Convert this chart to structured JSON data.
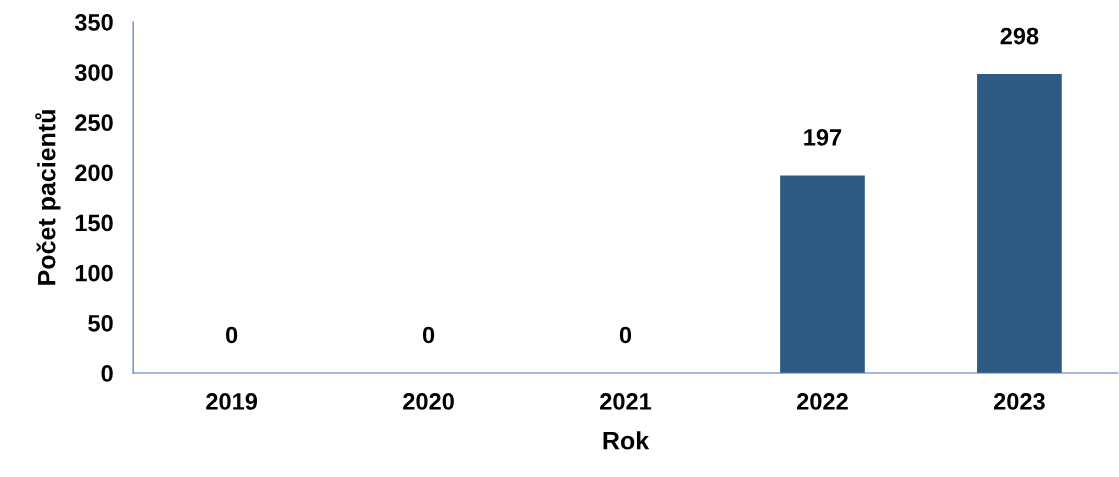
{
  "chart_data": {
    "type": "bar",
    "xlabel": "Rok",
    "ylabel": "Počet pacientů",
    "categories": [
      "2019",
      "2020",
      "2021",
      "2022",
      "2023"
    ],
    "values": [
      0,
      0,
      0,
      197,
      298
    ],
    "color": "#2e5a84",
    "ylim": [
      0,
      350
    ],
    "yticks": [
      0,
      50,
      100,
      150,
      200,
      250,
      300,
      350
    ],
    "data_labels": true,
    "grid": false,
    "legend": false
  }
}
